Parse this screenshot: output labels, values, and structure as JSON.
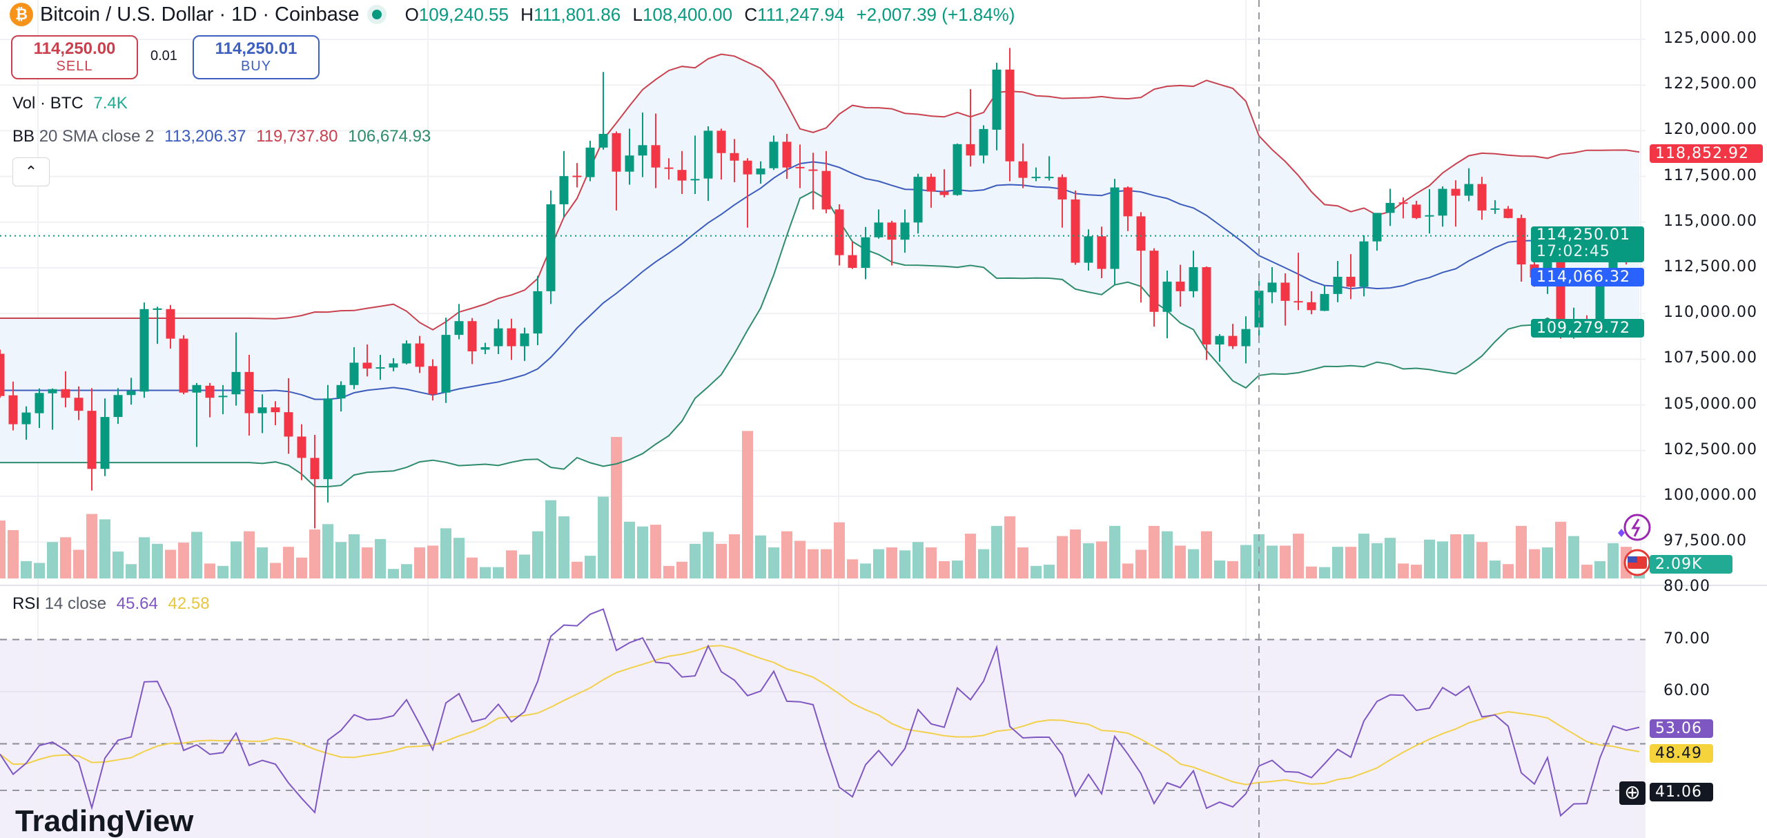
{
  "header": {
    "icon": "bitcoin-icon",
    "title": "Bitcoin / U.S. Dollar · 1D · Coinbase",
    "status_dot_color": "#089981",
    "open_label": "O",
    "open": "109,240.55",
    "high_label": "H",
    "high": "111,801.86",
    "low_label": "L",
    "low": "108,400.00",
    "close_label": "C",
    "close": "111,247.94",
    "change": "+2,007.39 (+1.84%)"
  },
  "trade": {
    "sell_price": "114,250.00",
    "sell_label": "SELL",
    "spread": "0.01",
    "buy_price": "114,250.01",
    "buy_label": "BUY"
  },
  "legend": {
    "vol_label": "Vol · BTC",
    "vol_value": "7.4K",
    "bb_name": "BB",
    "bb_params": "20 SMA close 2",
    "bb_basis": "113,206.37",
    "bb_upper": "119,737.80",
    "bb_lower": "106,674.93",
    "collapse_icon": "chevron-up-icon",
    "rsi_name": "RSI",
    "rsi_params": "14 close",
    "rsi_value": "45.64",
    "rsi_ma_value": "42.58"
  },
  "price_axis": {
    "ticks": [
      "125,000.00",
      "122,500.00",
      "120,000.00",
      "117,500.00",
      "115,000.00",
      "112,500.00",
      "110,000.00",
      "107,500.00",
      "105,000.00",
      "102,500.00",
      "100,000.00",
      "97,500.00"
    ],
    "badges": {
      "bb_upper": "118,852.92",
      "last_price": "114,250.01",
      "countdown": "17:02:45",
      "bb_basis": "114,066.32",
      "bb_lower": "109,279.72",
      "volume": "2.09K"
    }
  },
  "rsi_axis": {
    "ticks": [
      "80.00",
      "70.00",
      "60.00"
    ],
    "badges": {
      "rsi": "53.06",
      "rsi_ma": "48.49",
      "crosshair": "41.06"
    }
  },
  "logo": {
    "text": "TradingView"
  },
  "colors": {
    "up": "#089981",
    "down": "#f23645",
    "vol_up": "#92d2c7",
    "vol_down": "#f7a9a7",
    "bb_basis": "#3b5bbd",
    "bb_upper": "#c9414e",
    "bb_lower": "#2e8b6b",
    "bb_fill": "#eef5fc",
    "rsi": "#7e57c2",
    "rsi_ma": "#f2d04a",
    "rsi_band": "#f3effa"
  },
  "chart_data": {
    "type": "candlestick",
    "interval": "1D",
    "price_range": [
      97500,
      125000
    ],
    "rsi_range": [
      30,
      80
    ],
    "rsi_levels": [
      70,
      50,
      30
    ],
    "crosshair": {
      "candle_index": 96,
      "rsi": 41.06
    },
    "last_price": 114250.01,
    "indicators": [
      "Volume",
      "Bollinger Bands 20 SMA close 2",
      "RSI 14 close"
    ],
    "ohlc": [
      [
        107798,
        108024,
        105392,
        105486
      ],
      [
        105524,
        106276,
        103606,
        103944
      ],
      [
        103944,
        104922,
        103098,
        104584
      ],
      [
        104546,
        105900,
        103738,
        105655
      ],
      [
        105636,
        105900,
        103644,
        105862
      ],
      [
        105862,
        106840,
        104866,
        105392
      ],
      [
        105392,
        106012,
        104170,
        104678
      ],
      [
        104678,
        105918,
        100316,
        101500
      ],
      [
        101500,
        105354,
        101106,
        104340
      ],
      [
        104340,
        105918,
        103964,
        105542
      ],
      [
        105542,
        106482,
        105016,
        105768
      ],
      [
        105730,
        110600,
        105392,
        110242
      ],
      [
        110200,
        110374,
        108344,
        110280
      ],
      [
        110242,
        110468,
        108080,
        108626
      ],
      [
        108626,
        108814,
        105580,
        105674
      ],
      [
        105674,
        106200,
        102700,
        106088
      ],
      [
        106050,
        106200,
        104320,
        105392
      ],
      [
        105460,
        106088,
        104490,
        105500
      ],
      [
        105580,
        108964,
        104960,
        106802
      ],
      [
        106802,
        107742,
        103324,
        104546
      ],
      [
        104546,
        105580,
        103456,
        104866
      ],
      [
        104866,
        105204,
        103888,
        104602
      ],
      [
        104602,
        106464,
        102328,
        103268
      ],
      [
        103268,
        103944,
        100880,
        102102
      ],
      [
        102102,
        103362,
        98248,
        100938
      ],
      [
        100938,
        106088,
        99658,
        105354
      ],
      [
        105354,
        106294,
        104640,
        106088
      ],
      [
        106088,
        108156,
        105862,
        107310
      ],
      [
        107310,
        108306,
        106558,
        106990
      ],
      [
        107000,
        107742,
        106370,
        107060
      ],
      [
        107046,
        107554,
        106840,
        107272
      ],
      [
        107272,
        108532,
        107216,
        108362
      ],
      [
        108362,
        108776,
        106746,
        107084
      ],
      [
        107122,
        107498,
        105242,
        105580
      ],
      [
        105674,
        109772,
        105110,
        108832
      ],
      [
        108832,
        110524,
        108588,
        109584
      ],
      [
        109584,
        109754,
        107234,
        107930
      ],
      [
        108024,
        108400,
        107780,
        108156
      ],
      [
        108212,
        109678,
        107780,
        109190
      ],
      [
        109190,
        109716,
        107460,
        108212
      ],
      [
        108212,
        109228,
        107404,
        108908
      ],
      [
        108908,
        112066,
        108268,
        111220
      ],
      [
        111220,
        116728,
        110524,
        115976
      ],
      [
        115976,
        118890,
        115262,
        117518
      ],
      [
        117540,
        118232,
        116898,
        117480
      ],
      [
        117462,
        119454,
        117236,
        119078
      ],
      [
        119078,
        123214,
        118966,
        119830
      ],
      [
        119868,
        119962,
        115638,
        117762
      ],
      [
        117762,
        120112,
        117048,
        118646
      ],
      [
        118646,
        120996,
        117462,
        119210
      ],
      [
        119210,
        120940,
        116860,
        117988
      ],
      [
        117990,
        118496,
        117330,
        117930
      ],
      [
        117856,
        118890,
        116540,
        117274
      ],
      [
        117300,
        119736,
        116540,
        117360
      ],
      [
        117386,
        120244,
        116164,
        120000
      ],
      [
        120000,
        120112,
        117330,
        118778
      ],
      [
        118778,
        119548,
        117180,
        118364
      ],
      [
        118364,
        118496,
        114698,
        117612
      ],
      [
        117612,
        118326,
        117104,
        117932
      ],
      [
        117950,
        119736,
        117856,
        119398
      ],
      [
        119398,
        119830,
        117368,
        117988
      ],
      [
        118020,
        119248,
        116860,
        117960
      ],
      [
        117880,
        118796,
        115694,
        117830
      ],
      [
        117800,
        118890,
        115488,
        115694
      ],
      [
        115694,
        115976,
        112630,
        113194
      ],
      [
        113194,
        113946,
        112442,
        112498
      ],
      [
        112498,
        114736,
        111878,
        114170
      ],
      [
        114170,
        115694,
        114096,
        114980
      ],
      [
        114980,
        115074,
        112630,
        114040
      ],
      [
        114040,
        115694,
        113326,
        114980
      ],
      [
        114980,
        117650,
        114378,
        117480
      ],
      [
        117480,
        117650,
        115788,
        116672
      ],
      [
        116672,
        117894,
        116352,
        116484
      ],
      [
        116484,
        119304,
        116446,
        119266
      ],
      [
        119266,
        122274,
        118044,
        118646
      ],
      [
        118646,
        120300,
        118214,
        120094
      ],
      [
        120056,
        123722,
        118928,
        123346
      ],
      [
        123346,
        124530,
        117236,
        118326
      ],
      [
        118326,
        119304,
        116860,
        117424
      ],
      [
        117440,
        117988,
        117236,
        117480
      ],
      [
        117440,
        118608,
        117274,
        117480
      ],
      [
        117462,
        117612,
        114698,
        116240
      ],
      [
        116240,
        116728,
        112668,
        112780
      ],
      [
        112780,
        114604,
        112348,
        114228
      ],
      [
        114228,
        114754,
        111934,
        112442
      ],
      [
        112442,
        117368,
        111596,
        116898
      ],
      [
        116898,
        116954,
        114510,
        115318
      ],
      [
        115318,
        115544,
        110600,
        113438
      ],
      [
        113438,
        113570,
        109284,
        110092
      ],
      [
        110092,
        112348,
        108644,
        111746
      ],
      [
        111746,
        112668,
        110374,
        111220
      ],
      [
        111220,
        113438,
        110882,
        112536
      ],
      [
        112536,
        112574,
        107460,
        108306
      ],
      [
        108306,
        108870,
        107366,
        108776
      ],
      [
        108776,
        109434,
        108062,
        108212
      ],
      [
        108212,
        109848,
        107272,
        109152
      ],
      [
        109240.55,
        111801.86,
        108400,
        111247.94
      ],
      [
        111164,
        112536,
        110562,
        111690
      ],
      [
        111690,
        112198,
        109340,
        110694
      ],
      [
        110680,
        113326,
        110186,
        110640
      ],
      [
        110618,
        111220,
        109960,
        110186
      ],
      [
        110148,
        111502,
        110130,
        111070
      ],
      [
        111070,
        112874,
        110618,
        112010
      ],
      [
        112010,
        113250,
        110788,
        111464
      ],
      [
        111464,
        114284,
        110938,
        113946
      ],
      [
        113946,
        115506,
        113438,
        115506
      ],
      [
        115506,
        116822,
        114792,
        116052
      ],
      [
        116080,
        116352,
        115206,
        116030
      ],
      [
        115958,
        116164,
        115168,
        115224
      ],
      [
        115330,
        116804,
        114378,
        115380
      ],
      [
        115356,
        116954,
        114754,
        116822
      ],
      [
        116822,
        117292,
        114754,
        116446
      ],
      [
        116446,
        117950,
        116146,
        117086
      ],
      [
        117086,
        117480,
        115130,
        115638
      ],
      [
        115710,
        116202,
        115450,
        115750
      ],
      [
        115732,
        115882,
        115206,
        115224
      ],
      [
        115224,
        115412,
        111746,
        112686
      ],
      [
        112686,
        113288,
        111464,
        111972
      ],
      [
        111972,
        113946,
        111070,
        113288
      ],
      [
        113288,
        113532,
        108626,
        109002
      ],
      [
        109002,
        110318,
        108626,
        109622
      ],
      [
        109680,
        109904,
        109114,
        109640
      ],
      [
        109622,
        112348,
        109210,
        112160
      ],
      [
        112160,
        114454,
        111558,
        114322
      ],
      [
        114322,
        114736,
        112686,
        114040
      ],
      [
        114096,
        114736,
        114040,
        114250.01
      ]
    ],
    "volume_k": [
      9.7,
      8.1,
      2.9,
      2.6,
      6.1,
      6.9,
      4.8,
      10.8,
      9.9,
      4.5,
      2.4,
      6.9,
      5.8,
      4.8,
      6.0,
      7.8,
      2.5,
      2.1,
      6.2,
      7.9,
      5.2,
      2.6,
      5.3,
      3.5,
      8.2,
      9.1,
      6.1,
      7.4,
      5.2,
      6.6,
      1.6,
      2.4,
      5.2,
      5.5,
      8.4,
      6.8,
      3.5,
      1.9,
      1.9,
      4.7,
      4.0,
      7.9,
      13.1,
      10.4,
      2.8,
      3.8,
      13.7,
      23.7,
      9.5,
      8.7,
      9.0,
      2.1,
      2.8,
      5.8,
      7.8,
      5.8,
      7.4,
      24.7,
      7.2,
      5.2,
      7.9,
      6.3,
      4.9,
      4.9,
      9.4,
      3.2,
      2.5,
      4.9,
      5.2,
      4.7,
      6.1,
      5.2,
      2.9,
      3.0,
      7.5,
      4.9,
      8.8,
      10.4,
      5.2,
      2.1,
      2.3,
      7.1,
      8.2,
      5.9,
      6.2,
      8.8,
      2.5,
      4.8,
      8.8,
      7.9,
      5.5,
      4.9,
      7.9,
      3.0,
      2.9,
      5.6,
      7.4,
      5.5,
      5.5,
      7.5,
      2.0,
      1.9,
      5.3,
      5.3,
      7.5,
      5.9,
      6.8,
      2.5,
      2.3,
      6.5,
      6.2,
      7.4,
      7.4,
      6.1,
      3.0,
      2.4,
      8.8,
      4.9,
      5.2,
      9.5,
      7.1,
      2.3,
      2.9,
      5.9,
      5.3,
      2.09
    ]
  }
}
